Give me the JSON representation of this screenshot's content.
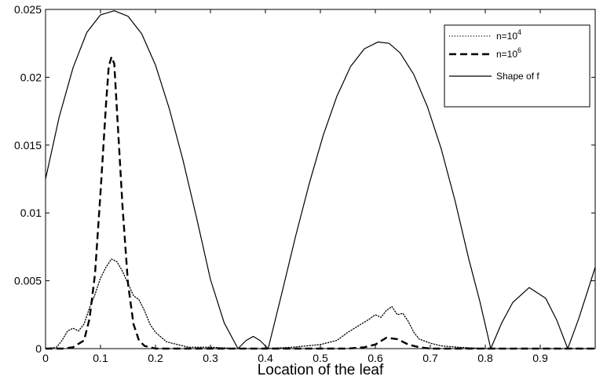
{
  "chart_data": {
    "type": "line",
    "title": "",
    "xlabel": "Location of the leaf",
    "ylabel": "",
    "xlim": [
      0,
      1
    ],
    "ylim": [
      0,
      0.025
    ],
    "grid": false,
    "legend_position": "top-right",
    "x_ticks": [
      0,
      0.1,
      0.2,
      0.3,
      0.4,
      0.5,
      0.6,
      0.7,
      0.8,
      0.9
    ],
    "x_tick_labels": [
      "0",
      "0.1",
      "0.2",
      "0.3",
      "0.4",
      "0.5",
      "0.6",
      "0.7",
      "0.8",
      "0.9"
    ],
    "y_ticks": [
      0,
      0.005,
      0.01,
      0.015,
      0.02,
      0.025
    ],
    "y_tick_labels": [
      "0",
      "0.005",
      "0.01",
      "0.015",
      "0.02",
      "0.025"
    ],
    "series": [
      {
        "name_base": "n=10",
        "name_exp": "4",
        "style": "dotted",
        "color": "#000000",
        "x": [
          0,
          0.02,
          0.03,
          0.04,
          0.05,
          0.06,
          0.07,
          0.08,
          0.09,
          0.1,
          0.11,
          0.12,
          0.13,
          0.14,
          0.15,
          0.16,
          0.17,
          0.18,
          0.19,
          0.2,
          0.22,
          0.24,
          0.26,
          0.3,
          0.35,
          0.4,
          0.45,
          0.5,
          0.53,
          0.55,
          0.57,
          0.59,
          0.6,
          0.61,
          0.62,
          0.63,
          0.64,
          0.65,
          0.66,
          0.67,
          0.68,
          0.7,
          0.72,
          0.75,
          0.8,
          0.9,
          1.0
        ],
        "y": [
          0,
          0.0001,
          0.0006,
          0.0013,
          0.0015,
          0.0013,
          0.0018,
          0.003,
          0.004,
          0.0052,
          0.006,
          0.0066,
          0.0064,
          0.0057,
          0.0048,
          0.0039,
          0.0036,
          0.0028,
          0.0018,
          0.0012,
          0.0005,
          0.0003,
          0.0001,
          0.0001,
          0,
          0,
          0.0001,
          0.0003,
          0.0006,
          0.0012,
          0.0017,
          0.0022,
          0.0025,
          0.0023,
          0.0028,
          0.0031,
          0.0025,
          0.0026,
          0.002,
          0.0012,
          0.0007,
          0.0004,
          0.0002,
          0.0001,
          0,
          0,
          0
        ]
      },
      {
        "name_base": "n=10",
        "name_exp": "6",
        "style": "dashed",
        "color": "#000000",
        "x": [
          0,
          0.03,
          0.05,
          0.07,
          0.08,
          0.09,
          0.1,
          0.11,
          0.115,
          0.12,
          0.125,
          0.13,
          0.14,
          0.15,
          0.16,
          0.17,
          0.18,
          0.2,
          0.3,
          0.5,
          0.55,
          0.58,
          0.6,
          0.62,
          0.64,
          0.66,
          0.68,
          0.7,
          0.8,
          1.0
        ],
        "y": [
          0,
          0,
          0.0001,
          0.0006,
          0.0022,
          0.0055,
          0.0115,
          0.018,
          0.0208,
          0.0215,
          0.021,
          0.0175,
          0.0105,
          0.0048,
          0.0018,
          0.0006,
          0.0002,
          0,
          0,
          0,
          0,
          0.0001,
          0.0003,
          0.0008,
          0.0007,
          0.0003,
          0.0001,
          0,
          0,
          0
        ]
      },
      {
        "name": "Shape of f",
        "style": "solid",
        "color": "#000000",
        "x": [
          0,
          0.025,
          0.05,
          0.075,
          0.1,
          0.125,
          0.15,
          0.175,
          0.2,
          0.225,
          0.25,
          0.275,
          0.3,
          0.325,
          0.35,
          0.365,
          0.378,
          0.39,
          0.405,
          0.43,
          0.455,
          0.48,
          0.505,
          0.53,
          0.555,
          0.58,
          0.605,
          0.625,
          0.645,
          0.67,
          0.695,
          0.72,
          0.745,
          0.77,
          0.79,
          0.81,
          0.83,
          0.85,
          0.88,
          0.91,
          0.93,
          0.95,
          0.97,
          0.985,
          1.0
        ],
        "y": [
          0.0125,
          0.0171,
          0.0207,
          0.0233,
          0.0246,
          0.0249,
          0.0245,
          0.0232,
          0.0209,
          0.0177,
          0.0139,
          0.0096,
          0.0051,
          0.0019,
          0.0,
          0.0006,
          0.0009,
          0.0006,
          0.0,
          0.0041,
          0.0083,
          0.0122,
          0.0157,
          0.0186,
          0.0208,
          0.0221,
          0.0226,
          0.0225,
          0.0218,
          0.0202,
          0.0178,
          0.0147,
          0.0109,
          0.0066,
          0.0035,
          0.0,
          0.0019,
          0.0034,
          0.0045,
          0.0037,
          0.0021,
          0.0,
          0.0022,
          0.0041,
          0.006
        ]
      }
    ]
  }
}
